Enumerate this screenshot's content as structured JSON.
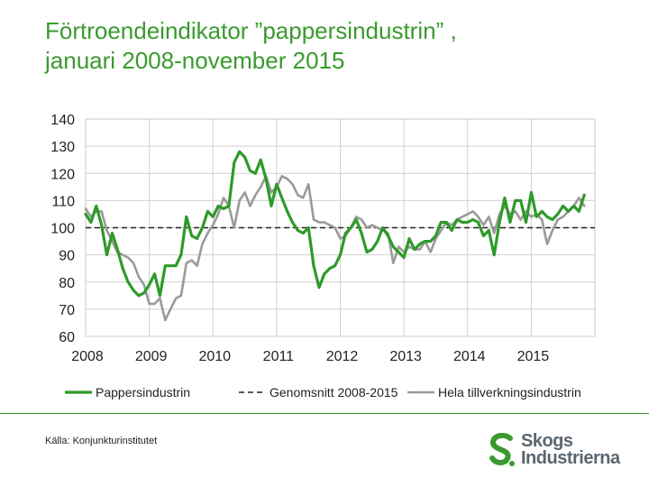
{
  "header": {
    "title_line1": "Förtroendeindikator ”pappersindustrin” ,",
    "title_line2": "januari 2008-november 2015"
  },
  "footer": {
    "source": "Källa: Konjunkturinstitutet"
  },
  "logo": {
    "line1": "Skogs",
    "line2": "Industrierna",
    "color": "#5b6670",
    "mark_color": "#3a9a2e"
  },
  "chart_data": {
    "type": "line",
    "title": "",
    "xlabel": "",
    "ylabel": "",
    "ylim": [
      60,
      140
    ],
    "yticks": [
      60,
      70,
      80,
      90,
      100,
      110,
      120,
      130,
      140
    ],
    "xlim": [
      2008,
      2016
    ],
    "xticks": [
      2008,
      2009,
      2010,
      2011,
      2012,
      2013,
      2014,
      2015
    ],
    "grid": true,
    "legend_position": "bottom",
    "reference_lines": [
      {
        "name": "Genomsnitt 2008-2015",
        "y": 100,
        "color": "#222222",
        "style": "dashed"
      }
    ],
    "series": [
      {
        "name": "Pappersindustrin",
        "color": "#2e9a2a",
        "x": [
          2008.0,
          2008.083,
          2008.167,
          2008.25,
          2008.333,
          2008.417,
          2008.5,
          2008.583,
          2008.667,
          2008.75,
          2008.833,
          2008.917,
          2009.0,
          2009.083,
          2009.167,
          2009.25,
          2009.333,
          2009.417,
          2009.5,
          2009.583,
          2009.667,
          2009.75,
          2009.833,
          2009.917,
          2010.0,
          2010.083,
          2010.167,
          2010.25,
          2010.333,
          2010.417,
          2010.5,
          2010.583,
          2010.667,
          2010.75,
          2010.833,
          2010.917,
          2011.0,
          2011.083,
          2011.167,
          2011.25,
          2011.333,
          2011.417,
          2011.5,
          2011.583,
          2011.667,
          2011.75,
          2011.833,
          2011.917,
          2012.0,
          2012.083,
          2012.167,
          2012.25,
          2012.333,
          2012.417,
          2012.5,
          2012.583,
          2012.667,
          2012.75,
          2012.833,
          2012.917,
          2013.0,
          2013.083,
          2013.167,
          2013.25,
          2013.333,
          2013.417,
          2013.5,
          2013.583,
          2013.667,
          2013.75,
          2013.833,
          2013.917,
          2014.0,
          2014.083,
          2014.167,
          2014.25,
          2014.333,
          2014.417,
          2014.5,
          2014.583,
          2014.667,
          2014.75,
          2014.833,
          2014.917,
          2015.0,
          2015.083,
          2015.167,
          2015.25,
          2015.333,
          2015.417,
          2015.5,
          2015.583,
          2015.667,
          2015.75,
          2015.833
        ],
        "values": [
          105,
          102,
          108,
          101,
          90,
          98,
          92,
          85,
          80,
          77,
          75,
          76,
          79,
          83,
          75,
          86,
          86,
          86,
          90,
          104,
          97,
          96,
          100,
          106,
          104,
          108,
          107,
          108,
          124,
          128,
          126,
          121,
          120,
          125,
          118,
          108,
          116,
          111,
          106,
          102,
          99,
          98,
          100,
          86,
          78,
          83,
          85,
          86,
          90,
          98,
          100,
          103,
          98,
          91,
          92,
          95,
          100,
          97,
          93,
          91,
          89,
          96,
          92,
          94,
          95,
          95,
          97,
          102,
          102,
          99,
          103,
          102,
          102,
          103,
          102,
          97,
          99,
          90,
          102,
          111,
          102,
          110,
          110,
          102,
          113,
          104,
          106,
          104,
          103,
          105,
          108,
          106,
          108,
          106,
          112
        ]
      },
      {
        "name": "Hela tillverkningsindustrin",
        "color": "#9a9a9a",
        "x": [
          2008.0,
          2008.083,
          2008.167,
          2008.25,
          2008.333,
          2008.417,
          2008.5,
          2008.583,
          2008.667,
          2008.75,
          2008.833,
          2008.917,
          2009.0,
          2009.083,
          2009.167,
          2009.25,
          2009.333,
          2009.417,
          2009.5,
          2009.583,
          2009.667,
          2009.75,
          2009.833,
          2009.917,
          2010.0,
          2010.083,
          2010.167,
          2010.25,
          2010.333,
          2010.417,
          2010.5,
          2010.583,
          2010.667,
          2010.75,
          2010.833,
          2010.917,
          2011.0,
          2011.083,
          2011.167,
          2011.25,
          2011.333,
          2011.417,
          2011.5,
          2011.583,
          2011.667,
          2011.75,
          2011.833,
          2011.917,
          2012.0,
          2012.083,
          2012.167,
          2012.25,
          2012.333,
          2012.417,
          2012.5,
          2012.583,
          2012.667,
          2012.75,
          2012.833,
          2012.917,
          2013.0,
          2013.083,
          2013.167,
          2013.25,
          2013.333,
          2013.417,
          2013.5,
          2013.583,
          2013.667,
          2013.75,
          2013.833,
          2013.917,
          2014.0,
          2014.083,
          2014.167,
          2014.25,
          2014.333,
          2014.417,
          2014.5,
          2014.583,
          2014.667,
          2014.75,
          2014.833,
          2014.917,
          2015.0,
          2015.083,
          2015.167,
          2015.25,
          2015.333,
          2015.417,
          2015.5,
          2015.583,
          2015.667,
          2015.75,
          2015.833
        ],
        "values": [
          107,
          104,
          106,
          106,
          99,
          95,
          91,
          90,
          89,
          87,
          82,
          79,
          72,
          72,
          74,
          66,
          70,
          74,
          75,
          87,
          88,
          86,
          94,
          98,
          101,
          105,
          111,
          108,
          100,
          110,
          113,
          108,
          112,
          115,
          119,
          113,
          115,
          119,
          118,
          116,
          112,
          111,
          116,
          103,
          102,
          102,
          101,
          100,
          96,
          97,
          100,
          104,
          103,
          100,
          101,
          100,
          99,
          98,
          87,
          93,
          91,
          93,
          92,
          92,
          95,
          91,
          96,
          99,
          102,
          101,
          103,
          104,
          105,
          106,
          104,
          101,
          104,
          98,
          105,
          108,
          105,
          106,
          103,
          106,
          104,
          105,
          103,
          94,
          99,
          103,
          104,
          106,
          108,
          111,
          108
        ]
      }
    ]
  }
}
